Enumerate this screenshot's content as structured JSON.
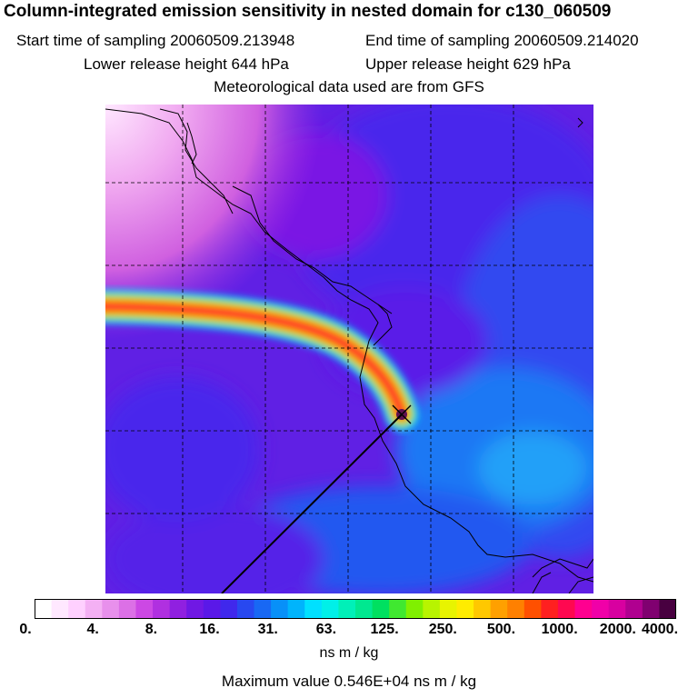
{
  "title": "Column-integrated emission sensitivity in nested domain for c130_060509",
  "sampling": {
    "start": "Start time of sampling 20060509.213948",
    "end": "End time of sampling 20060509.214020"
  },
  "release": {
    "lower": "Lower release height  644 hPa",
    "upper": "Upper release height  629 hPa"
  },
  "met": "Meteorological data used are from GFS",
  "colorbar": {
    "colors": [
      "#ffffff",
      "#ffe8ff",
      "#ffd0ff",
      "#f4b0f4",
      "#e890ec",
      "#dc70e6",
      "#cc48e4",
      "#b030e0",
      "#9020e0",
      "#7018e4",
      "#5a18e8",
      "#4028ec",
      "#2848f0",
      "#1868f4",
      "#0890f8",
      "#00b4fc",
      "#00e0ff",
      "#00f0e8",
      "#00f0b8",
      "#00e890",
      "#00e060",
      "#40e830",
      "#80f000",
      "#b8f400",
      "#e8f400",
      "#ffec00",
      "#ffc800",
      "#ffa000",
      "#ff8000",
      "#ff5000",
      "#ff2020",
      "#ff0850",
      "#ff0090",
      "#f000a8",
      "#d800a0",
      "#b00090",
      "#800070",
      "#480040"
    ],
    "labels": [
      "0.",
      "4.",
      "8.",
      "16.",
      "31.",
      "63.",
      "125.",
      "250.",
      "500.",
      "1000.",
      "2000.",
      "4000."
    ]
  },
  "units": "ns m / kg",
  "maximum": "Maximum value  0.546E+04 ns m / kg"
}
